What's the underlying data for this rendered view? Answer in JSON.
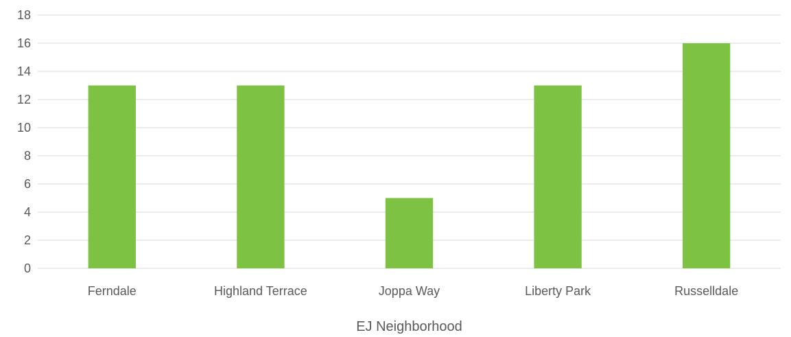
{
  "chart_data": {
    "type": "bar",
    "title": "",
    "categories": [
      "Ferndale",
      "Highland Terrace",
      "Joppa Way",
      "Liberty Park",
      "Russelldale"
    ],
    "values": [
      13,
      13,
      5,
      13,
      16
    ],
    "xlabel": "EJ Neighborhood",
    "ylabel": "",
    "ylim": [
      0,
      18
    ],
    "yticks": [
      0,
      2,
      4,
      6,
      8,
      10,
      12,
      14,
      16,
      18
    ],
    "grid": true,
    "legend": "none",
    "bar_color": "#7DC242",
    "grid_color": "#D9D9D9",
    "text_color": "#595959"
  }
}
